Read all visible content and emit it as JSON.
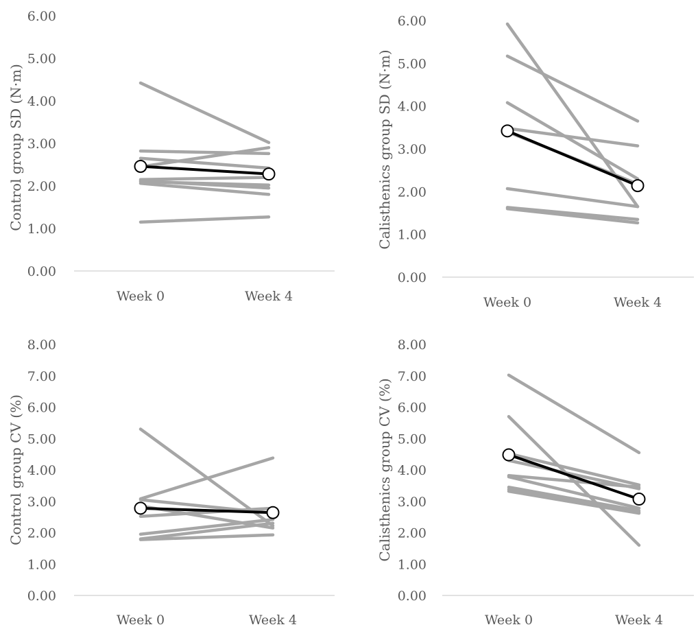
{
  "colors": {
    "individual": "#a6a6a6",
    "mean": "#000000",
    "axis": "#d9d9d9",
    "text": "#595959"
  },
  "chart_data": [
    {
      "type": "line",
      "ylabel": "Control group SD (N·m)",
      "categories": [
        "Week 0",
        "Week 4"
      ],
      "ylim": [
        0,
        6
      ],
      "yticks": [
        "0.00",
        "1.00",
        "2.00",
        "3.00",
        "4.00",
        "5.00",
        "6.00"
      ],
      "grid": false,
      "legend": "none",
      "individuals": [
        [
          4.42,
          3.02
        ],
        [
          2.82,
          2.76
        ],
        [
          2.65,
          2.42
        ],
        [
          2.45,
          2.9
        ],
        [
          2.15,
          2.2
        ],
        [
          2.12,
          1.95
        ],
        [
          2.1,
          2.02
        ],
        [
          2.06,
          1.8
        ],
        [
          1.15,
          1.27
        ]
      ],
      "mean": [
        2.46,
        2.28
      ]
    },
    {
      "type": "line",
      "ylabel": "Calisthenics group SD (N·m)",
      "categories": [
        "Week 0",
        "Week 4"
      ],
      "ylim": [
        0,
        6
      ],
      "yticks": [
        "0.00",
        "1.00",
        "2.00",
        "3.00",
        "4.00",
        "5.00",
        "6.00"
      ],
      "grid": false,
      "legend": "none",
      "individuals": [
        [
          5.92,
          1.65
        ],
        [
          5.17,
          3.65
        ],
        [
          4.08,
          2.3
        ],
        [
          3.48,
          3.07
        ],
        [
          3.4,
          2.18
        ],
        [
          2.07,
          1.65
        ],
        [
          1.63,
          1.35
        ],
        [
          1.6,
          1.27
        ]
      ],
      "mean": [
        3.42,
        2.14
      ]
    },
    {
      "type": "line",
      "ylabel": "Control group CV (%)",
      "categories": [
        "Week 0",
        "Week 4"
      ],
      "ylim": [
        0,
        8
      ],
      "yticks": [
        "0.00",
        "1.00",
        "2.00",
        "3.00",
        "4.00",
        "5.00",
        "6.00",
        "7.00",
        "8.00"
      ],
      "grid": false,
      "legend": "none",
      "individuals": [
        [
          5.3,
          2.22
        ],
        [
          3.08,
          4.38
        ],
        [
          3.05,
          2.62
        ],
        [
          2.52,
          2.78
        ],
        [
          2.85,
          2.15
        ],
        [
          1.95,
          2.42
        ],
        [
          1.8,
          2.3
        ],
        [
          1.78,
          1.93
        ]
      ],
      "mean": [
        2.78,
        2.64
      ]
    },
    {
      "type": "line",
      "ylabel": "Calisthenics group CV (%)",
      "categories": [
        "Week 0",
        "Week 4"
      ],
      "ylim": [
        0,
        8
      ],
      "yticks": [
        "0.00",
        "1.00",
        "2.00",
        "3.00",
        "4.00",
        "5.00",
        "6.00",
        "7.00",
        "8.00"
      ],
      "grid": false,
      "legend": "none",
      "individuals": [
        [
          7.02,
          4.55
        ],
        [
          5.7,
          1.6
        ],
        [
          4.52,
          3.52
        ],
        [
          4.3,
          3.4
        ],
        [
          3.82,
          3.45
        ],
        [
          3.78,
          2.78
        ],
        [
          3.45,
          2.7
        ],
        [
          3.38,
          2.65
        ],
        [
          3.32,
          2.62
        ]
      ],
      "mean": [
        4.48,
        3.07
      ]
    }
  ]
}
